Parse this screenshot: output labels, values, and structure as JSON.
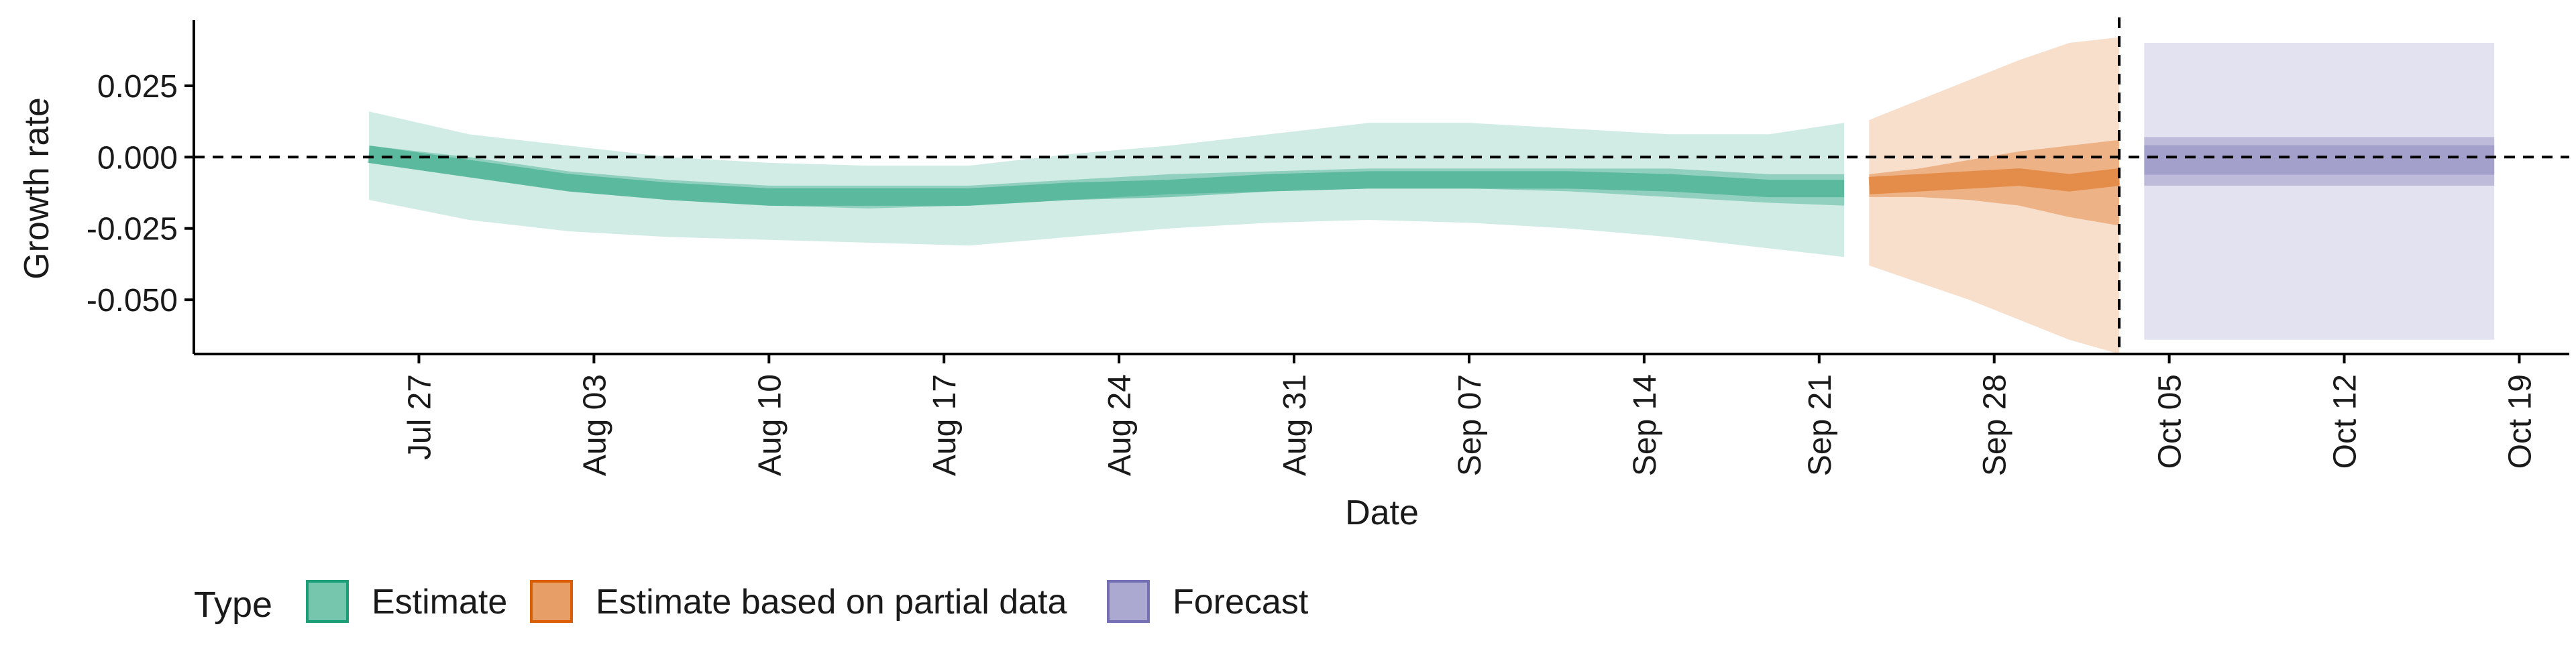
{
  "chart_data": {
    "type": "area",
    "xlabel": "Date",
    "ylabel": "Growth rate",
    "x_axis": {
      "type": "date",
      "range": [
        "2020-07-18",
        "2020-10-21"
      ],
      "ticks": [
        {
          "date": "2020-07-27",
          "label": "Jul 27"
        },
        {
          "date": "2020-08-03",
          "label": "Aug 03"
        },
        {
          "date": "2020-08-10",
          "label": "Aug 10"
        },
        {
          "date": "2020-08-17",
          "label": "Aug 17"
        },
        {
          "date": "2020-08-24",
          "label": "Aug 24"
        },
        {
          "date": "2020-08-31",
          "label": "Aug 31"
        },
        {
          "date": "2020-09-07",
          "label": "Sep 07"
        },
        {
          "date": "2020-09-14",
          "label": "Sep 14"
        },
        {
          "date": "2020-09-21",
          "label": "Sep 21"
        },
        {
          "date": "2020-09-28",
          "label": "Sep 28"
        },
        {
          "date": "2020-10-05",
          "label": "Oct 05"
        },
        {
          "date": "2020-10-12",
          "label": "Oct 12"
        },
        {
          "date": "2020-10-19",
          "label": "Oct 19"
        }
      ]
    },
    "y_axis": {
      "range": [
        -0.069,
        0.048
      ],
      "ticks": [
        {
          "value": 0.025,
          "label": "0.025"
        },
        {
          "value": 0.0,
          "label": "0.000"
        },
        {
          "value": -0.025,
          "label": "-0.025"
        },
        {
          "value": -0.05,
          "label": "-0.050"
        }
      ]
    },
    "reference_lines": [
      {
        "orientation": "horizontal",
        "value": 0.0,
        "style": "dashed"
      },
      {
        "orientation": "vertical",
        "date": "2020-10-03",
        "style": "dashed"
      }
    ],
    "grid": false,
    "legend": {
      "position": "bottom-left",
      "title": "Type",
      "items": [
        {
          "label": "Estimate",
          "color": "#1B9E77"
        },
        {
          "label": "Estimate based on partial data",
          "color": "#D95F02"
        },
        {
          "label": "Forecast",
          "color": "#7570B3"
        }
      ]
    },
    "series": [
      {
        "name": "Estimate",
        "color": "#1B9E77",
        "x": [
          "2020-07-25",
          "2020-07-29",
          "2020-08-02",
          "2020-08-06",
          "2020-08-10",
          "2020-08-14",
          "2020-08-18",
          "2020-08-22",
          "2020-08-26",
          "2020-08-30",
          "2020-09-03",
          "2020-09-07",
          "2020-09-11",
          "2020-09-15",
          "2020-09-19",
          "2020-09-22"
        ],
        "median": [
          0.001,
          -0.004,
          -0.009,
          -0.012,
          -0.014,
          -0.014,
          -0.014,
          -0.012,
          -0.011,
          -0.009,
          -0.008,
          -0.008,
          -0.008,
          -0.009,
          -0.011,
          -0.011
        ],
        "lower_50": [
          -0.002,
          -0.007,
          -0.012,
          -0.015,
          -0.017,
          -0.018,
          -0.017,
          -0.015,
          -0.013,
          -0.012,
          -0.011,
          -0.011,
          -0.012,
          -0.014,
          -0.016,
          -0.017
        ],
        "upper_50": [
          0.004,
          0.0,
          -0.005,
          -0.008,
          -0.01,
          -0.01,
          -0.01,
          -0.008,
          -0.006,
          -0.005,
          -0.004,
          -0.004,
          -0.004,
          -0.004,
          -0.006,
          -0.006
        ],
        "lower_90": [
          -0.015,
          -0.022,
          -0.026,
          -0.028,
          -0.029,
          -0.03,
          -0.031,
          -0.028,
          -0.025,
          -0.023,
          -0.022,
          -0.023,
          -0.025,
          -0.028,
          -0.032,
          -0.035
        ],
        "upper_90": [
          0.016,
          0.008,
          0.004,
          0.0,
          -0.002,
          -0.003,
          -0.003,
          0.001,
          0.004,
          0.008,
          0.012,
          0.012,
          0.01,
          0.008,
          0.008,
          0.012
        ]
      },
      {
        "name": "Estimate based on partial data",
        "color": "#D95F02",
        "x": [
          "2020-09-23",
          "2020-09-25",
          "2020-09-27",
          "2020-09-29",
          "2020-10-01",
          "2020-10-03"
        ],
        "median": [
          -0.01,
          -0.009,
          -0.008,
          -0.007,
          -0.009,
          -0.007
        ],
        "lower_50": [
          -0.014,
          -0.014,
          -0.015,
          -0.017,
          -0.021,
          -0.024
        ],
        "upper_50": [
          -0.006,
          -0.004,
          -0.001,
          0.002,
          0.004,
          0.006
        ],
        "lower_90": [
          -0.038,
          -0.044,
          -0.05,
          -0.057,
          -0.064,
          -0.069
        ],
        "upper_90": [
          0.013,
          0.02,
          0.027,
          0.034,
          0.04,
          0.042
        ]
      },
      {
        "name": "Forecast",
        "color": "#7570B3",
        "x": [
          "2020-10-04",
          "2020-10-18"
        ],
        "median": [
          -0.001,
          -0.001
        ],
        "lower_50": [
          -0.01,
          -0.01
        ],
        "upper_50": [
          0.007,
          0.007
        ],
        "lower_90": [
          -0.064,
          -0.064
        ],
        "upper_90": [
          0.04,
          0.04
        ]
      }
    ]
  }
}
